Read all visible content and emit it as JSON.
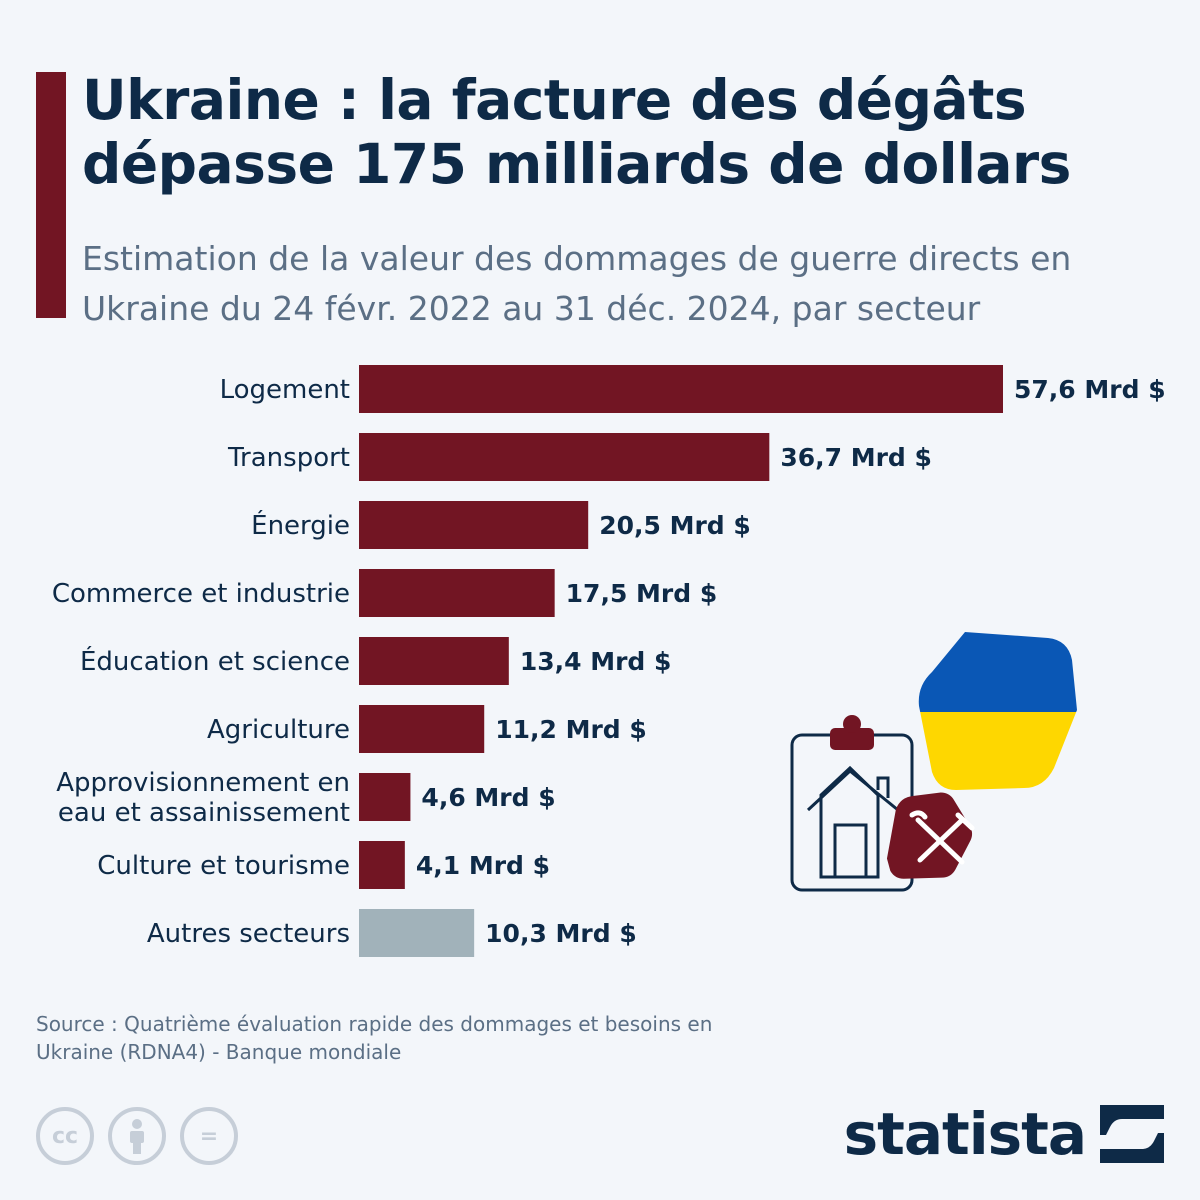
{
  "header": {
    "title": "Ukraine : la facture des dégâts dépasse 175 milliards de dollars",
    "subtitle": "Estimation de la valeur des dommages de guerre directs en Ukraine du 24 févr. 2022 au 31 déc. 2024, par secteur"
  },
  "chart_data": {
    "type": "bar",
    "orientation": "horizontal",
    "categories": [
      "Logement",
      "Transport",
      "Énergie",
      "Commerce et industrie",
      "Éducation et science",
      "Agriculture",
      "Approvisionnement en eau et assainissement",
      "Culture et tourisme",
      "Autres secteurs"
    ],
    "category_lines": [
      [
        "Logement"
      ],
      [
        "Transport"
      ],
      [
        "Énergie"
      ],
      [
        "Commerce et industrie"
      ],
      [
        "Éducation et science"
      ],
      [
        "Agriculture"
      ],
      [
        "Approvisionnement en",
        "eau et assainissement"
      ],
      [
        "Culture et tourisme"
      ],
      [
        "Autres secteurs"
      ]
    ],
    "values": [
      57.6,
      36.7,
      20.5,
      17.5,
      13.4,
      11.2,
      4.6,
      4.1,
      10.3
    ],
    "value_labels": [
      "57,6 Mrd $",
      "36,7 Mrd $",
      "20,5 Mrd $",
      "17,5 Mrd $",
      "13,4 Mrd $",
      "11,2 Mrd $",
      "4,6 Mrd $",
      "4,1 Mrd $",
      "10,3 Mrd $"
    ],
    "bar_colors": [
      "#721523",
      "#721523",
      "#721523",
      "#721523",
      "#721523",
      "#721523",
      "#721523",
      "#721523",
      "#a1b2ba"
    ],
    "xlim": [
      0,
      57.6
    ],
    "grid": false,
    "legend": "none"
  },
  "colors": {
    "accent": "#721523",
    "other": "#a1b2ba",
    "title": "#0e2a47",
    "subtitle": "#5b6f85",
    "flag_blue": "#0a57b5",
    "flag_yellow": "#fed700"
  },
  "icons": [
    "ukraine-flag-icon",
    "clipboard-house-icon",
    "repair-tools-icon",
    "cc-icon",
    "attribution-icon",
    "no-derivatives-icon",
    "statista-logo-icon"
  ],
  "footer": {
    "source": "Source : Quatrième évaluation rapide des dommages et besoins en Ukraine (RDNA4) - Banque mondiale",
    "license": {
      "cc": "cc",
      "nd": "="
    },
    "brand": "statista"
  }
}
